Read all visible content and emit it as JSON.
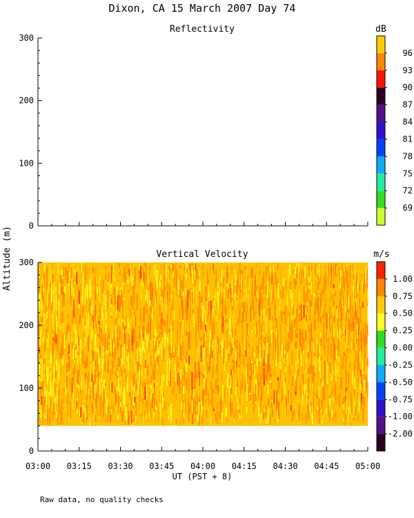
{
  "page": {
    "title": "Dixon, CA 15 March 2007  Day  74",
    "note": "Raw data, no quality checks"
  },
  "chart_data": [
    {
      "type": "heatmap",
      "title": "Reflectivity",
      "ylabel": "Altitude (m)",
      "xlabel": "UT  (PST + 8)",
      "xlim": [
        "03:00",
        "05:00"
      ],
      "x_ticks": [
        "03:00",
        "03:15",
        "03:30",
        "03:45",
        "04:00",
        "04:15",
        "04:30",
        "04:45",
        "05:00"
      ],
      "ylim": [
        0,
        300
      ],
      "y_ticks": [
        0,
        100,
        200,
        300
      ],
      "data_present": false,
      "colorbar": {
        "unit": "dB",
        "labels": [
          "69",
          "72",
          "75",
          "78",
          "81",
          "84",
          "87",
          "90",
          "93",
          "96"
        ],
        "colors": [
          "#ccff33",
          "#33dd22",
          "#22ee99",
          "#11aaff",
          "#0044ff",
          "#3311cc",
          "#55108a",
          "#2a0022",
          "#ff1100",
          "#ff8800",
          "#ffcc00"
        ]
      }
    },
    {
      "type": "heatmap",
      "title": "Vertical Velocity",
      "ylabel": "Altitude (m)",
      "xlabel": "UT  (PST + 8)",
      "xlim": [
        "03:00",
        "05:00"
      ],
      "x_ticks": [
        "03:00",
        "03:15",
        "03:30",
        "03:45",
        "04:00",
        "04:15",
        "04:30",
        "04:45",
        "05:00"
      ],
      "ylim": [
        0,
        300
      ],
      "y_ticks": [
        0,
        100,
        200,
        300
      ],
      "data_altitude_range": [
        40,
        300
      ],
      "dominant_value": 0.5,
      "colorbar": {
        "unit": "m/s",
        "labels": [
          "-2.00",
          "-1.00",
          "-0.75",
          "-0.50",
          "-0.25",
          "0.00",
          "0.25",
          "0.50",
          "0.75",
          "1.00"
        ],
        "colors": [
          "#2a0022",
          "#55108a",
          "#3311cc",
          "#0044ff",
          "#11aaff",
          "#22ee99",
          "#33dd22",
          "#ffff22",
          "#ffcc00",
          "#ff8800",
          "#ff2200"
        ]
      }
    }
  ]
}
